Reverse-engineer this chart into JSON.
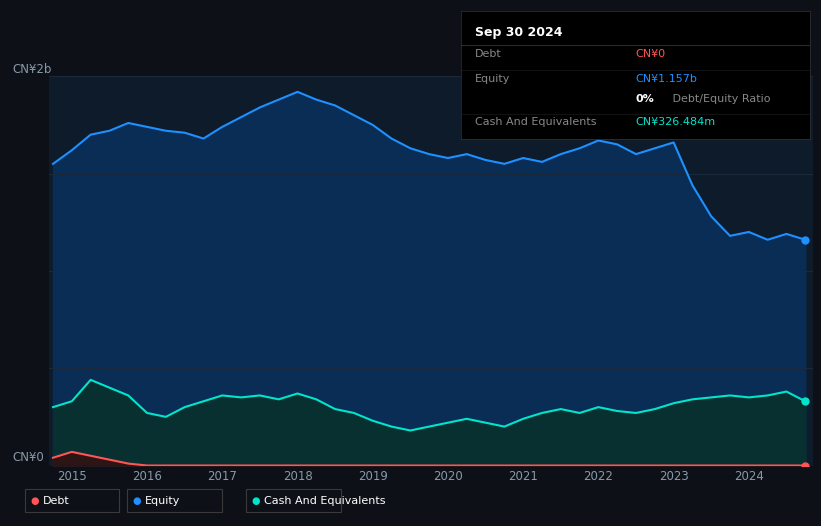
{
  "bg_color": "#0d1117",
  "plot_bg_color": "#0d1b2a",
  "title_box_date": "Sep 30 2024",
  "ylabel_top": "CN¥2b",
  "ylabel_bottom": "CN¥0",
  "x_years": [
    2014.75,
    2015.0,
    2015.25,
    2015.5,
    2015.75,
    2016.0,
    2016.25,
    2016.5,
    2016.75,
    2017.0,
    2017.25,
    2017.5,
    2017.75,
    2018.0,
    2018.25,
    2018.5,
    2018.75,
    2019.0,
    2019.25,
    2019.5,
    2019.75,
    2020.0,
    2020.25,
    2020.5,
    2020.75,
    2021.0,
    2021.25,
    2021.5,
    2021.75,
    2022.0,
    2022.25,
    2022.5,
    2022.75,
    2023.0,
    2023.25,
    2023.5,
    2023.75,
    2024.0,
    2024.25,
    2024.5,
    2024.75
  ],
  "equity": [
    1.55,
    1.62,
    1.7,
    1.72,
    1.76,
    1.74,
    1.72,
    1.71,
    1.68,
    1.74,
    1.79,
    1.84,
    1.88,
    1.92,
    1.88,
    1.85,
    1.8,
    1.75,
    1.68,
    1.63,
    1.6,
    1.58,
    1.6,
    1.57,
    1.55,
    1.58,
    1.56,
    1.6,
    1.63,
    1.67,
    1.65,
    1.6,
    1.63,
    1.66,
    1.44,
    1.28,
    1.18,
    1.2,
    1.16,
    1.19,
    1.16
  ],
  "cash": [
    0.3,
    0.33,
    0.44,
    0.4,
    0.36,
    0.27,
    0.25,
    0.3,
    0.33,
    0.36,
    0.35,
    0.36,
    0.34,
    0.37,
    0.34,
    0.29,
    0.27,
    0.23,
    0.2,
    0.18,
    0.2,
    0.22,
    0.24,
    0.22,
    0.2,
    0.24,
    0.27,
    0.29,
    0.27,
    0.3,
    0.28,
    0.27,
    0.29,
    0.32,
    0.34,
    0.35,
    0.36,
    0.35,
    0.36,
    0.38,
    0.33
  ],
  "debt": [
    0.04,
    0.07,
    0.05,
    0.03,
    0.01,
    0.0,
    0.0,
    0.0,
    0.0,
    0.0,
    0.0,
    0.0,
    0.0,
    0.0,
    0.0,
    0.0,
    0.0,
    0.0,
    0.0,
    0.0,
    0.0,
    0.0,
    0.0,
    0.0,
    0.0,
    0.0,
    0.0,
    0.0,
    0.0,
    0.0,
    0.0,
    0.0,
    0.0,
    0.0,
    0.0,
    0.0,
    0.0,
    0.0,
    0.0,
    0.0,
    0.0
  ],
  "equity_color": "#1e90ff",
  "equity_fill": "#0a2d55",
  "cash_color": "#00e5cc",
  "cash_fill": "#083030",
  "debt_color": "#ff5555",
  "debt_fill": "#3d0a0a",
  "legend_items": [
    {
      "label": "Debt",
      "color": "#ff5555"
    },
    {
      "label": "Equity",
      "color": "#1e90ff"
    },
    {
      "label": "Cash And Equivalents",
      "color": "#00e5cc"
    }
  ],
  "x_tick_labels": [
    "2015",
    "2016",
    "2017",
    "2018",
    "2019",
    "2020",
    "2021",
    "2022",
    "2023",
    "2024"
  ],
  "x_tick_positions": [
    2015,
    2016,
    2017,
    2018,
    2019,
    2020,
    2021,
    2022,
    2023,
    2024
  ],
  "ylim": [
    0,
    2.0
  ],
  "grid_color": "#1a2a3a",
  "text_color": "#8899aa"
}
